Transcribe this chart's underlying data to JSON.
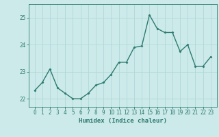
{
  "x": [
    0,
    1,
    2,
    3,
    4,
    5,
    6,
    7,
    8,
    9,
    10,
    11,
    12,
    13,
    14,
    15,
    16,
    17,
    18,
    19,
    20,
    21,
    22,
    23
  ],
  "y": [
    22.3,
    22.6,
    23.1,
    22.4,
    22.2,
    22.0,
    22.0,
    22.2,
    22.5,
    22.6,
    22.9,
    23.35,
    23.35,
    23.9,
    23.95,
    25.1,
    24.6,
    24.45,
    24.45,
    23.75,
    24.0,
    23.2,
    23.2,
    23.55
  ],
  "line_color": "#2d7a6e",
  "marker": "D",
  "marker_size": 1.5,
  "bg_color": "#cceaea",
  "grid_color": "#b0d8d8",
  "tick_color": "#2d7a6e",
  "label_color": "#2d7a6e",
  "xlabel": "Humidex (Indice chaleur)",
  "ylim": [
    21.7,
    25.5
  ],
  "yticks": [
    22,
    23,
    24,
    25
  ],
  "xticks": [
    0,
    1,
    2,
    3,
    4,
    5,
    6,
    7,
    8,
    9,
    10,
    11,
    12,
    13,
    14,
    15,
    16,
    17,
    18,
    19,
    20,
    21,
    22,
    23
  ],
  "xlabel_fontsize": 6.5,
  "tick_fontsize": 5.5,
  "linewidth": 1.0
}
